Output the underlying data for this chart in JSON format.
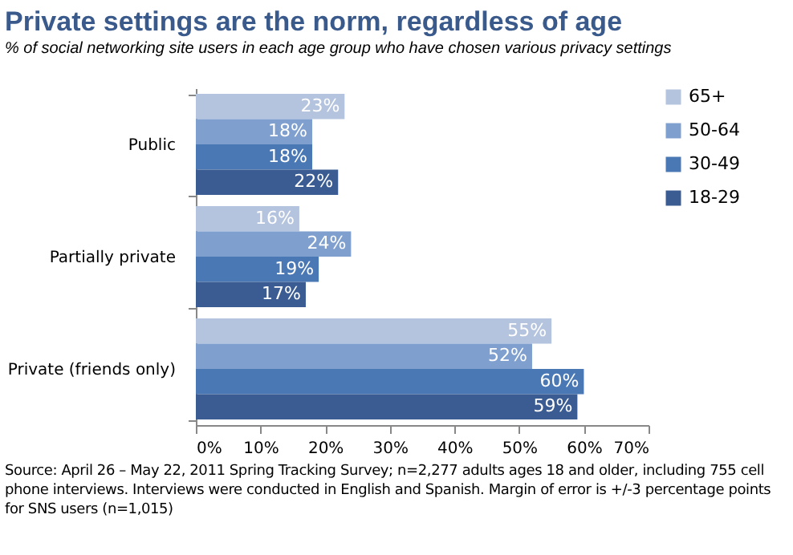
{
  "chart_data": {
    "type": "bar",
    "orientation": "horizontal",
    "title": "Private settings are the norm, regardless of age",
    "subtitle": "% of social networking site users in each age group who have chosen various privacy settings",
    "categories": [
      "Public",
      "Partially private",
      "Private (friends only)"
    ],
    "series": [
      {
        "name": "65+",
        "color": "#b4c3de",
        "values": [
          23,
          16,
          55
        ],
        "value_labels": [
          "23%",
          "16%",
          "55%"
        ]
      },
      {
        "name": "50-64",
        "color": "#7f9fce",
        "values": [
          18,
          24,
          52
        ],
        "value_labels": [
          "18%",
          "24%",
          "52%"
        ]
      },
      {
        "name": "30-49",
        "color": "#4a78b5",
        "values": [
          18,
          19,
          60
        ],
        "value_labels": [
          "18%",
          "19%",
          "60%"
        ]
      },
      {
        "name": "18-29",
        "color": "#3a5c92",
        "values": [
          22,
          17,
          59
        ],
        "value_labels": [
          "22%",
          "17%",
          "59%"
        ]
      }
    ],
    "xlim": [
      0,
      70
    ],
    "xticks": [
      {
        "value": 0,
        "label": "0%"
      },
      {
        "value": 10,
        "label": "10%"
      },
      {
        "value": 20,
        "label": "20%"
      },
      {
        "value": 30,
        "label": "30%"
      },
      {
        "value": 40,
        "label": "40%"
      },
      {
        "value": 50,
        "label": "50%"
      },
      {
        "value": 60,
        "label": "60%"
      },
      {
        "value": 70,
        "label": "70%"
      }
    ],
    "grid": false,
    "legend": "right",
    "annotations": [
      "Source: April 26 – May 22, 2011 Spring Tracking Survey; n=2,277 adults ages 18 and older, including 755 cell phone interviews. Interviews were conducted in English and Spanish. Margin of error is +/-3 percentage points for SNS users (n=1,015)"
    ]
  }
}
